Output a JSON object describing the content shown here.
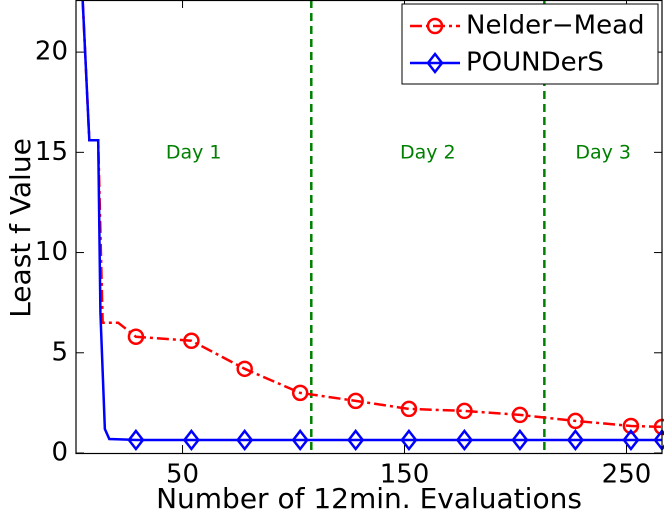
{
  "chart_data": {
    "type": "line",
    "x_label": "Number of 12min. Evaluations",
    "y_label": "Least f Value",
    "xlim": [
      2,
      266
    ],
    "ylim": [
      0,
      22.6
    ],
    "xticks": [
      50,
      150,
      250
    ],
    "yticks": [
      0,
      5,
      10,
      15,
      20
    ],
    "vlines": [
      108,
      213
    ],
    "vline_color": "#008000",
    "annotations": [
      "Day 1",
      "Day 2",
      "Day 3"
    ],
    "legend": "upper right",
    "series": [
      {
        "name": "Nelder−Mead",
        "color": "#ff0000",
        "marker": "circle",
        "marker_from": 5,
        "x": [
          5,
          8,
          12,
          14,
          21,
          29,
          54,
          78,
          103,
          128,
          152,
          177,
          202,
          227,
          252,
          266
        ],
        "values": [
          22.6,
          15.6,
          15.6,
          6.5,
          6.5,
          5.8,
          5.6,
          4.2,
          3.0,
          2.6,
          2.2,
          2.1,
          1.9,
          1.6,
          1.35,
          1.3
        ]
      },
      {
        "name": "POUNDerS",
        "color": "#0000ff",
        "marker": "diamond",
        "marker_from": 6,
        "x": [
          5,
          8,
          12,
          13,
          15,
          17,
          29,
          54,
          78,
          103,
          128,
          152,
          177,
          202,
          227,
          252,
          266
        ],
        "values": [
          22.6,
          15.6,
          15.6,
          7,
          1.2,
          0.7,
          0.65,
          0.65,
          0.65,
          0.65,
          0.65,
          0.65,
          0.65,
          0.65,
          0.65,
          0.65,
          0.65
        ]
      }
    ]
  }
}
